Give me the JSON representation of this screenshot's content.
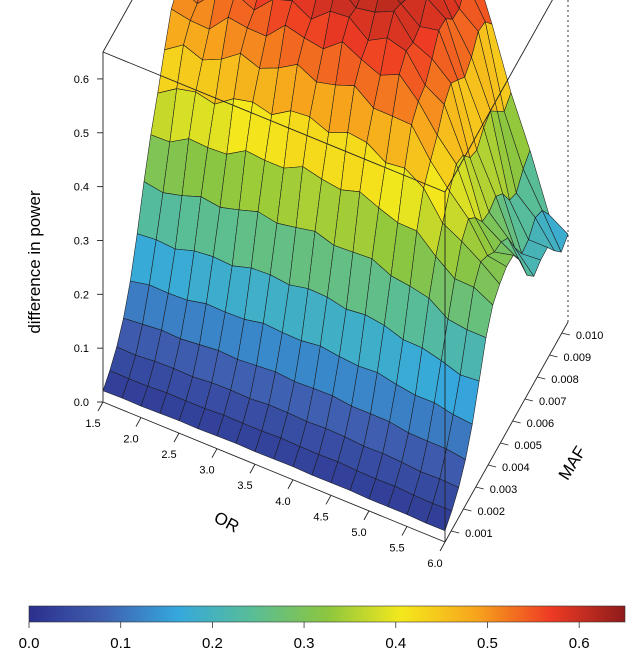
{
  "chart_data": {
    "type": "surface3d",
    "zlabel": "difference in power",
    "xlabel": "OR",
    "ylabel": "MAF",
    "x_ticks": [
      "1.5",
      "2.0",
      "2.5",
      "3.0",
      "3.5",
      "4.0",
      "4.5",
      "5.0",
      "5.5",
      "6.0"
    ],
    "y_ticks": [
      "0.001",
      "0.002",
      "0.003",
      "0.004",
      "0.005",
      "0.006",
      "0.007",
      "0.008",
      "0.009",
      "0.010"
    ],
    "z_ticks": [
      "0.0",
      "0.1",
      "0.2",
      "0.3",
      "0.4",
      "0.5",
      "0.6"
    ],
    "xlim": [
      1.5,
      6.0
    ],
    "ylim": [
      0.0005,
      0.0105
    ],
    "zlim": [
      0,
      0.65
    ],
    "colorbar": {
      "ticks": [
        "0.0",
        "0.1",
        "0.2",
        "0.3",
        "0.4",
        "0.5",
        "0.6"
      ],
      "range": [
        0,
        0.65
      ],
      "palette": [
        "#2b2f8c",
        "#3f5fb0",
        "#35a8dd",
        "#59bd96",
        "#8cc63f",
        "#f4e81c",
        "#f7a51c",
        "#ee3b24",
        "#8e1b1b"
      ]
    },
    "description_values": {
      "or_grid": [
        1.5,
        1.75,
        2.0,
        2.25,
        2.5,
        2.75,
        3.0,
        3.25,
        3.5,
        3.75,
        4.0,
        4.25,
        4.5,
        4.75,
        5.0,
        5.25,
        5.5,
        5.75,
        6.0
      ],
      "maf_grid": [
        0.001,
        0.0015,
        0.002,
        0.0025,
        0.003,
        0.0035,
        0.004,
        0.0045,
        0.005,
        0.0055,
        0.006,
        0.0065,
        0.007,
        0.0075,
        0.008,
        0.0085,
        0.009,
        0.0095,
        0.01
      ],
      "peak_difference": 0.63
    }
  }
}
